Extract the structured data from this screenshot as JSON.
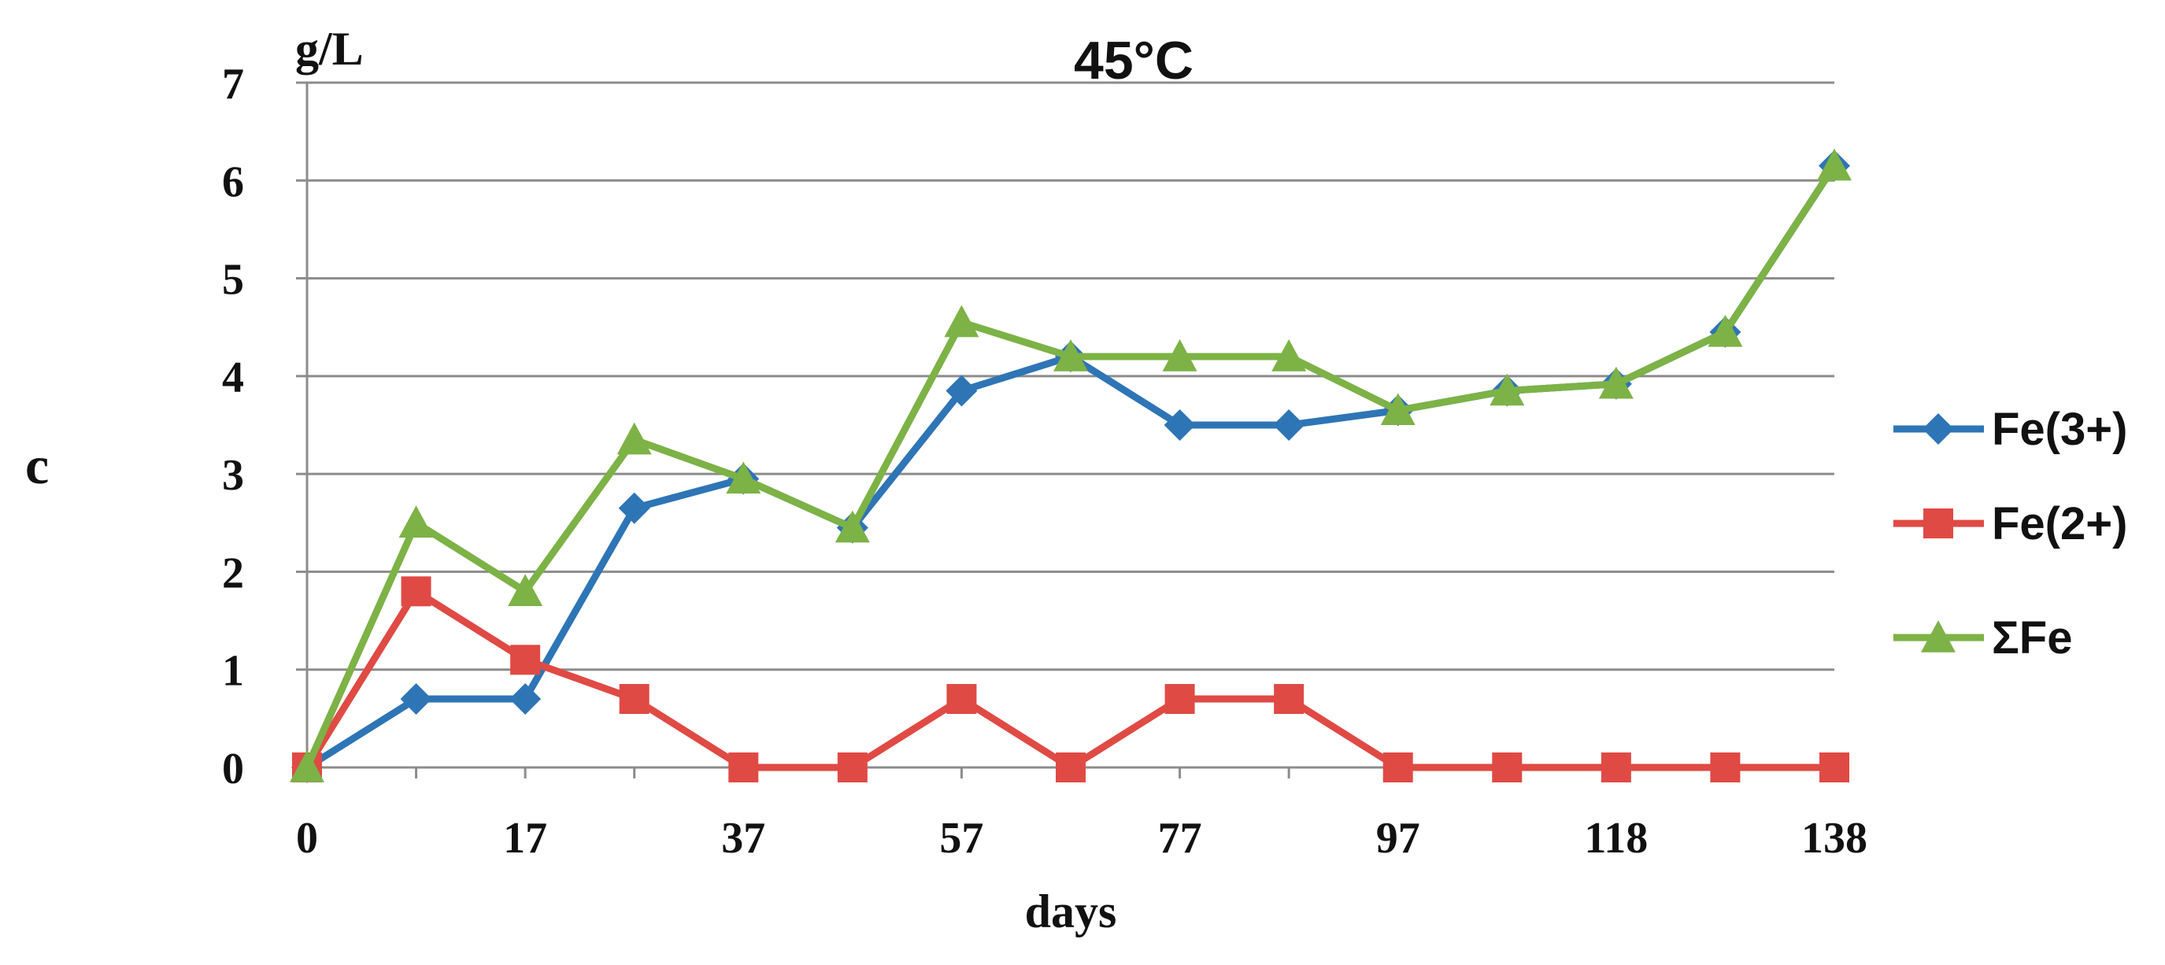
{
  "chart_data": {
    "type": "line",
    "panel_label": "c",
    "title": "45°C",
    "xlabel": "days",
    "ylabel": "g/L",
    "ylim": [
      0,
      7
    ],
    "yticks": [
      "0",
      "1",
      "2",
      "3",
      "4",
      "5",
      "6",
      "7"
    ],
    "x_tick_labels": [
      "0",
      "17",
      "37",
      "57",
      "77",
      "97",
      "118",
      "138"
    ],
    "x_index_count": 15,
    "grid": true,
    "legend_position": "right",
    "series": [
      {
        "name": "Fe(3+)",
        "color": "#2e75b6",
        "marker": "diamond",
        "values": [
          0,
          0.7,
          0.7,
          2.65,
          2.95,
          2.45,
          3.85,
          4.2,
          3.5,
          3.5,
          3.65,
          3.85,
          3.92,
          4.45,
          6.15
        ]
      },
      {
        "name": "Fe(2+)",
        "color": "#e04a44",
        "marker": "square",
        "values": [
          0,
          1.8,
          1.1,
          0.7,
          0,
          0,
          0.7,
          0,
          0.7,
          0.7,
          0,
          0,
          0,
          0,
          0
        ]
      },
      {
        "name": "ΣFe",
        "color": "#7db246",
        "marker": "triangle",
        "values": [
          0,
          2.5,
          1.8,
          3.35,
          2.95,
          2.45,
          4.55,
          4.2,
          4.2,
          4.2,
          3.65,
          3.85,
          3.92,
          4.45,
          6.15
        ]
      }
    ]
  }
}
